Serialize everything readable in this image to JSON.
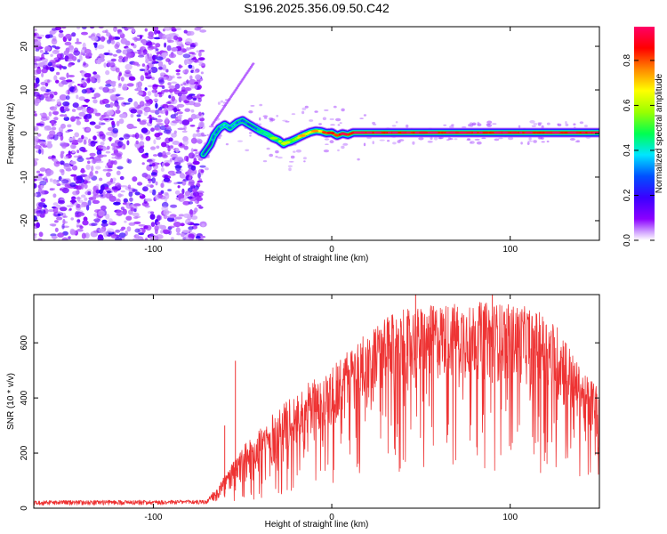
{
  "figure_title": "S196.2025.356.09.50.C42",
  "chart_data": [
    {
      "type": "heatmap",
      "title": "S196.2025.356.09.50.C42",
      "xlabel": "Height of straight line (km)",
      "ylabel": "Frequency (Hz)",
      "xlim": [
        -167,
        150
      ],
      "ylim": [
        -24.5,
        24.5
      ],
      "x_ticks": [
        -100,
        0,
        100
      ],
      "y_ticks": [
        -20,
        -10,
        0,
        10,
        20
      ],
      "x_tick_labels": [
        "-100",
        "0",
        "100"
      ],
      "y_tick_labels": [
        "-20",
        "-10",
        "0",
        "10",
        "20"
      ],
      "colorbar": {
        "label": "Normalized spectral amplitude",
        "range": [
          0,
          0.95
        ],
        "ticks": [
          0,
          0.2,
          0.4,
          0.6,
          0.8
        ],
        "tick_labels": [
          "0.0",
          "0.2",
          "0.4",
          "0.6",
          "0.8"
        ],
        "colors": [
          "#ffffff",
          "#8b00ff",
          "#3a00ff",
          "#0050ff",
          "#00e5ff",
          "#00ff50",
          "#9aff00",
          "#ffff00",
          "#ff8800",
          "#ff0000",
          "#ff0066"
        ]
      },
      "noise_region_x": [
        -167,
        -72
      ],
      "spectral_ridge": {
        "x": [
          -72,
          -68,
          -66,
          -63,
          -60,
          -57,
          -53,
          -50,
          -47,
          -44,
          -40,
          -36,
          -33,
          -30,
          -27,
          -25,
          -23,
          -20,
          -17,
          -15,
          -12,
          -9,
          -6,
          -3,
          0,
          3,
          6,
          9,
          12,
          150
        ],
        "freq": [
          -4.8,
          -2.5,
          -0.5,
          1.2,
          2.0,
          1.2,
          2.5,
          3.0,
          2.2,
          1.5,
          0.5,
          -0.2,
          -1.0,
          -1.5,
          -2.4,
          -2.0,
          -1.8,
          -1.2,
          -0.6,
          -0.2,
          0.3,
          0.6,
          0.5,
          0.1,
          0.2,
          -0.5,
          0.0,
          -0.3,
          0.2,
          0.2
        ],
        "amplitude": [
          0.3,
          0.2,
          0.35,
          0.3,
          0.4,
          0.35,
          0.35,
          0.3,
          0.3,
          0.3,
          0.35,
          0.4,
          0.45,
          0.5,
          0.55,
          0.5,
          0.55,
          0.6,
          0.65,
          0.6,
          0.7,
          0.75,
          0.7,
          0.8,
          0.8,
          0.8,
          0.9,
          0.85,
          0.9,
          0.9
        ]
      },
      "diagonal_streak": {
        "x": [
          -67,
          -44
        ],
        "freq": [
          2,
          16
        ]
      }
    },
    {
      "type": "line",
      "xlabel": "Height of straight line (km)",
      "ylabel": "SNR (10 * v/v)",
      "xlim": [
        -167,
        150
      ],
      "ylim": [
        0,
        775
      ],
      "x_ticks": [
        -100,
        0,
        100
      ],
      "y_ticks": [
        0,
        200,
        400,
        600
      ],
      "x_tick_labels": [
        "-100",
        "0",
        "100"
      ],
      "y_tick_labels": [
        "0",
        "200",
        "400",
        "600"
      ],
      "color": "#ee3333",
      "series": [
        {
          "name": "SNR",
          "envelope_x": [
            -167,
            -70,
            -64,
            -60,
            -55,
            -50,
            -40,
            -30,
            -20,
            -10,
            0,
            10,
            20,
            30,
            40,
            50,
            60,
            70,
            80,
            90,
            100,
            110,
            120,
            130,
            135,
            140,
            145,
            150
          ],
          "envelope_hi": [
            28,
            30,
            80,
            120,
            170,
            220,
            300,
            360,
            420,
            470,
            520,
            580,
            640,
            690,
            720,
            730,
            740,
            745,
            750,
            745,
            740,
            730,
            700,
            640,
            560,
            500,
            470,
            460
          ],
          "envelope_lo": [
            10,
            12,
            20,
            40,
            60,
            80,
            110,
            150,
            190,
            230,
            270,
            320,
            360,
            400,
            430,
            440,
            450,
            455,
            460,
            455,
            450,
            440,
            400,
            350,
            320,
            290,
            260,
            230
          ],
          "spikes": [
            {
              "x": -54,
              "y": 535
            },
            {
              "x": -60,
              "y": 300
            },
            {
              "x": 47,
              "y": 775
            },
            {
              "x": 90,
              "y": 775
            }
          ]
        }
      ]
    }
  ]
}
